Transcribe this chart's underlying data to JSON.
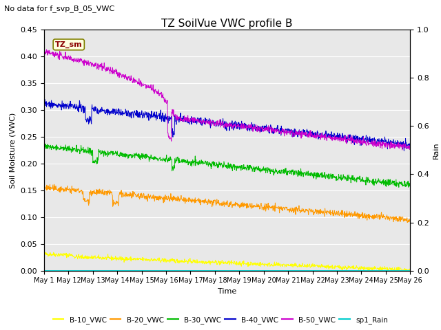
{
  "title": "TZ SoilVue VWC profile B",
  "subtitle": "No data for f_svp_B_05_VWC",
  "xlabel": "Time",
  "ylabel_left": "Soil Moisture (VWC)",
  "ylabel_right": "Rain",
  "ylim_left": [
    0,
    0.45
  ],
  "ylim_right": [
    0,
    1.0
  ],
  "x_tick_labels": [
    "May 1",
    "May 12",
    "May 13",
    "May 14",
    "May 15",
    "May 16",
    "May 17",
    "May 18",
    "May 19",
    "May 20",
    "May 21",
    "May 22",
    "May 23",
    "May 24",
    "May 25",
    "May 26"
  ],
  "colors": {
    "B10": "#ffff00",
    "B20": "#ff9900",
    "B30": "#00bb00",
    "B40": "#0000cc",
    "B50": "#cc00cc",
    "rain": "#00cccc"
  },
  "legend_labels": [
    "B-10_VWC",
    "B-20_VWC",
    "B-30_VWC",
    "B-40_VWC",
    "B-50_VWC",
    "sp1_Rain"
  ],
  "annotation_box": "TZ_sm",
  "background_color": "#e8e8e8",
  "grid_color": "#ffffff"
}
